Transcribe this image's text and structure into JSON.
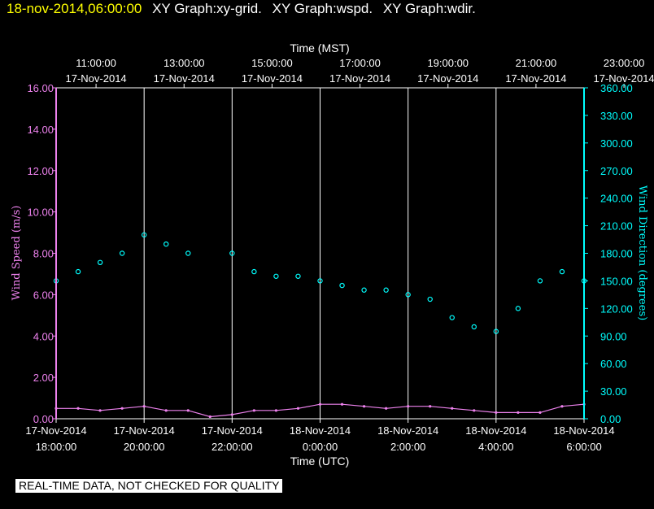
{
  "header": {
    "timestamp": "18-nov-2014,06:00:00",
    "graph_titles": [
      "XY Graph:xy-grid.",
      "XY Graph:wspd.",
      "XY Graph:wdir."
    ]
  },
  "disclaimer": "REAL-TIME DATA, NOT CHECKED FOR QUALITY",
  "colors": {
    "background": "#000000",
    "speed": "#ee82ee",
    "direction": "#00ffff",
    "text": "#ffffff",
    "timestamp": "#ffff00",
    "grid": "#ffffff"
  },
  "chart_data": {
    "type": "scatter",
    "grid": true,
    "top_axis": {
      "title": "Time (MST)",
      "ticks": [
        {
          "time": "11:00:00",
          "date": "17-Nov-2014"
        },
        {
          "time": "13:00:00",
          "date": "17-Nov-2014"
        },
        {
          "time": "15:00:00",
          "date": "17-Nov-2014"
        },
        {
          "time": "17:00:00",
          "date": "17-Nov-2014"
        },
        {
          "time": "19:00:00",
          "date": "17-Nov-2014"
        },
        {
          "time": "21:00:00",
          "date": "17-Nov-2014"
        },
        {
          "time": "23:00:00",
          "date": "17-Nov-2014"
        }
      ]
    },
    "bottom_axis": {
      "title": "Time (UTC)",
      "ticks": [
        {
          "date": "17-Nov-2014",
          "time": "18:00:00"
        },
        {
          "date": "17-Nov-2014",
          "time": "20:00:00"
        },
        {
          "date": "17-Nov-2014",
          "time": "22:00:00"
        },
        {
          "date": "18-Nov-2014",
          "time": "0:00:00"
        },
        {
          "date": "18-Nov-2014",
          "time": "2:00:00"
        },
        {
          "date": "18-Nov-2014",
          "time": "4:00:00"
        },
        {
          "date": "18-Nov-2014",
          "time": "6:00:00"
        }
      ],
      "xlim": [
        "17-Nov-2014 18:00:00",
        "18-Nov-2014 6:00:00"
      ]
    },
    "left_axis": {
      "label": "Wind Speed (m/s)",
      "ticks": [
        "0.00",
        "2.00",
        "4.00",
        "6.00",
        "8.00",
        "10.00",
        "12.00",
        "14.00",
        "16.00"
      ],
      "ylim": [
        0,
        16
      ]
    },
    "right_axis": {
      "label": "Wind Direction (degrees)",
      "ticks": [
        "0.00",
        "30.00",
        "60.00",
        "90.00",
        "120.00",
        "150.00",
        "180.00",
        "210.00",
        "240.00",
        "270.00",
        "300.00",
        "330.00",
        "360.00"
      ],
      "ylim": [
        0,
        360
      ]
    },
    "series": [
      {
        "axis": "left",
        "style": "line",
        "x": [
          "17-Nov-2014 18:00:00",
          "17-Nov-2014 18:30:00",
          "17-Nov-2014 19:00:00",
          "17-Nov-2014 19:30:00",
          "17-Nov-2014 20:00:00",
          "17-Nov-2014 20:30:00",
          "17-Nov-2014 21:00:00",
          "17-Nov-2014 21:30:00",
          "17-Nov-2014 22:00:00",
          "17-Nov-2014 22:30:00",
          "17-Nov-2014 23:00:00",
          "17-Nov-2014 23:30:00",
          "18-Nov-2014 0:00:00",
          "18-Nov-2014 0:30:00",
          "18-Nov-2014 1:00:00",
          "18-Nov-2014 1:30:00",
          "18-Nov-2014 2:00:00",
          "18-Nov-2014 2:30:00",
          "18-Nov-2014 3:00:00",
          "18-Nov-2014 3:30:00",
          "18-Nov-2014 4:00:00",
          "18-Nov-2014 4:30:00",
          "18-Nov-2014 5:00:00",
          "18-Nov-2014 5:30:00",
          "18-Nov-2014 6:00:00"
        ],
        "values": [
          0.5,
          0.5,
          0.4,
          0.5,
          0.6,
          0.4,
          0.4,
          0.1,
          0.2,
          0.4,
          0.4,
          0.5,
          0.7,
          0.7,
          0.6,
          0.5,
          0.6,
          0.6,
          0.5,
          0.4,
          0.3,
          0.3,
          0.3,
          0.6,
          0.7
        ]
      },
      {
        "axis": "right",
        "style": "markers",
        "x": [
          "17-Nov-2014 18:00:00",
          "17-Nov-2014 18:30:00",
          "17-Nov-2014 19:00:00",
          "17-Nov-2014 19:30:00",
          "17-Nov-2014 20:00:00",
          "17-Nov-2014 20:30:00",
          "17-Nov-2014 21:00:00",
          "17-Nov-2014 22:00:00",
          "17-Nov-2014 22:30:00",
          "17-Nov-2014 23:00:00",
          "17-Nov-2014 23:30:00",
          "18-Nov-2014 0:00:00",
          "18-Nov-2014 0:30:00",
          "18-Nov-2014 1:00:00",
          "18-Nov-2014 1:30:00",
          "18-Nov-2014 2:00:00",
          "18-Nov-2014 2:30:00",
          "18-Nov-2014 3:00:00",
          "18-Nov-2014 3:30:00",
          "18-Nov-2014 4:00:00",
          "18-Nov-2014 4:30:00",
          "18-Nov-2014 5:00:00",
          "18-Nov-2014 5:30:00",
          "18-Nov-2014 6:00:00"
        ],
        "values": [
          150,
          160,
          170,
          180,
          200,
          190,
          180,
          180,
          160,
          155,
          155,
          150,
          145,
          140,
          140,
          135,
          130,
          110,
          100,
          95,
          120,
          150,
          160,
          150
        ]
      }
    ]
  }
}
